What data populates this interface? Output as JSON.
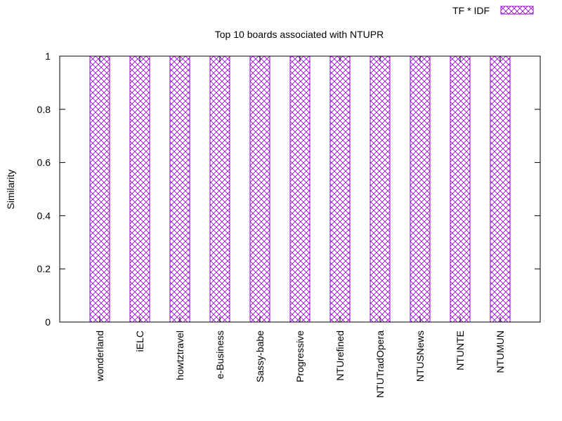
{
  "chart_data": {
    "type": "bar",
    "title": "Top 10 boards associated with NTUPR",
    "xlabel": "",
    "ylabel": "Similarity",
    "categories": [
      "wonderland",
      "iELC",
      "howtztravel",
      "e-Business",
      "Sassy-babe",
      "Progressive",
      "NTUrefined",
      "NTUTradOpera",
      "NTUSNews",
      "NTUNTE",
      "NTUMUN"
    ],
    "series": [
      {
        "name": "TF * IDF",
        "values": [
          1,
          1,
          1,
          1,
          1,
          1,
          1,
          1,
          1,
          1,
          1
        ],
        "color": "#9400d3"
      }
    ],
    "ylim": [
      0,
      1
    ],
    "yticks": [
      "0",
      "0.2",
      "0.4",
      "0.6",
      "0.8",
      "1"
    ],
    "grid": false,
    "legend": "top-right"
  }
}
